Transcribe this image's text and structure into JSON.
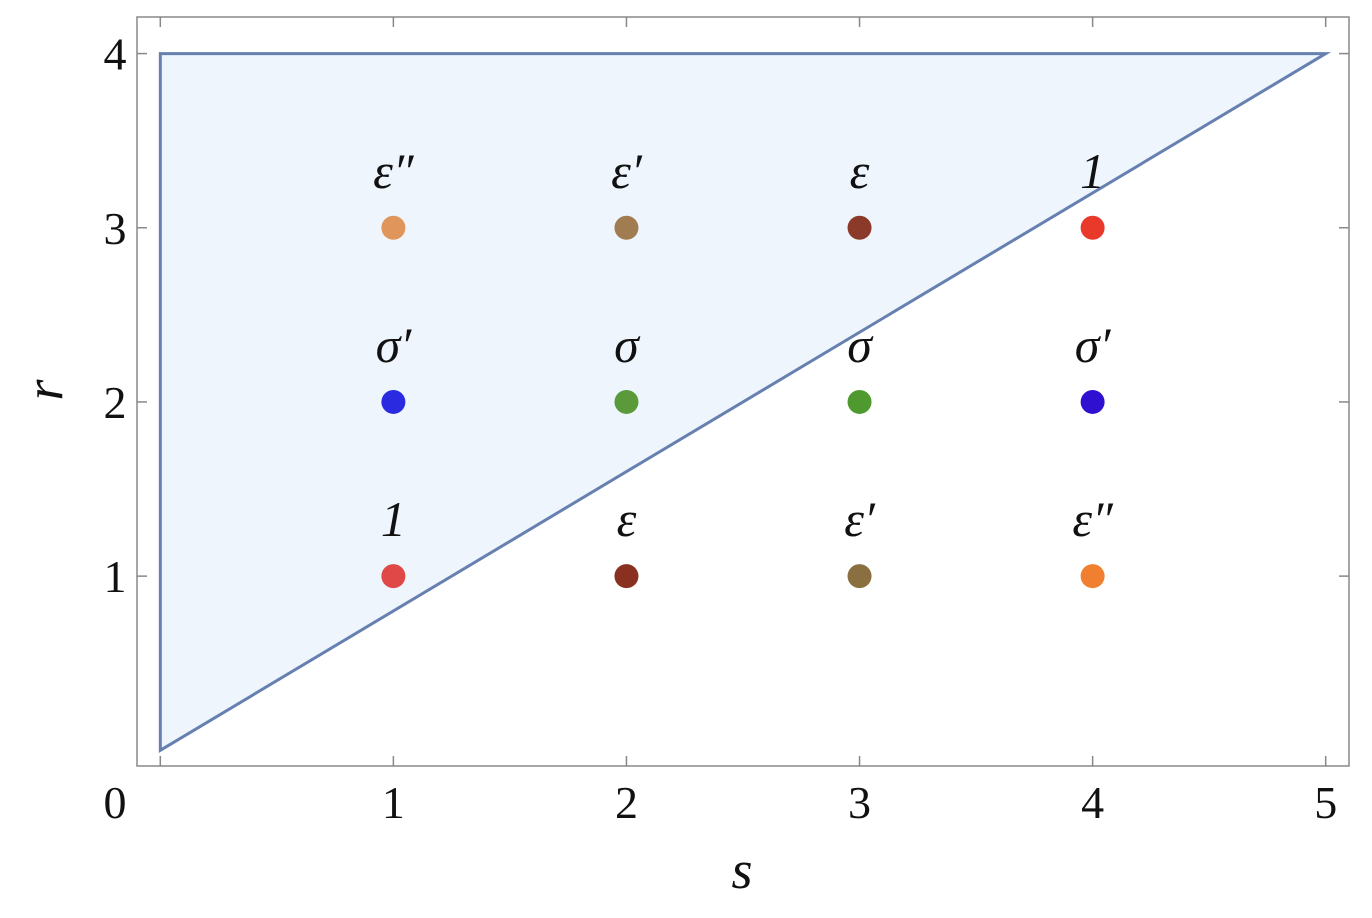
{
  "chart_data": {
    "type": "scatter",
    "xlabel": "s",
    "ylabel": "r",
    "xlim": [
      -0.1,
      5.1
    ],
    "ylim": [
      -0.09,
      4.21
    ],
    "xticks": [
      0,
      1,
      2,
      3,
      4,
      5
    ],
    "yticks": [
      1,
      2,
      3,
      4
    ],
    "region": {
      "x": [
        0,
        0,
        5
      ],
      "y": [
        0,
        4,
        4
      ],
      "color": "#eef5fd",
      "edge_color": "#6680b0"
    },
    "points": {
      "x": [
        1,
        2,
        3,
        4,
        1,
        2,
        3,
        4,
        1,
        2,
        3,
        4
      ],
      "y": [
        3,
        3,
        3,
        3,
        2,
        2,
        2,
        2,
        1,
        1,
        1,
        1
      ],
      "labels": [
        "ε″",
        "ε′",
        "ε",
        "1",
        "σ′",
        "σ",
        "σ",
        "σ′",
        "1",
        "ε",
        "ε′",
        "ε″"
      ],
      "colors": [
        "#e0955a",
        "#a07c50",
        "#8b3a2a",
        "#e8392b",
        "#2a2ae0",
        "#5a9a3a",
        "#4e9a2e",
        "#3010d0",
        "#e04848",
        "#8a3020",
        "#8a7040",
        "#f08030"
      ]
    }
  }
}
